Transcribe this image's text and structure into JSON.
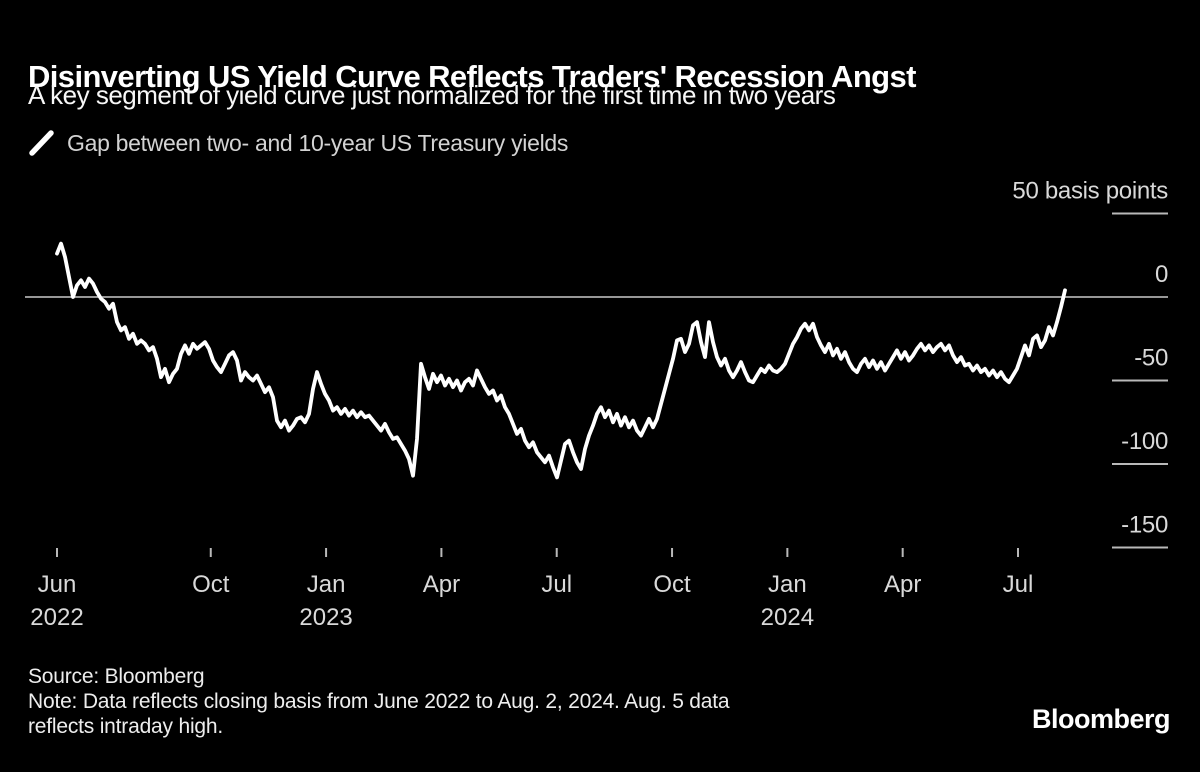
{
  "header": {
    "title": "Disinverting US Yield Curve Reflects Traders' Recession Angst",
    "subtitle": "A key segment of yield curve just normalized for the first time in two years"
  },
  "legend": {
    "marker": "line-swatch-icon",
    "label": "Gap between two- and 10-year US Treasury yields"
  },
  "footer": {
    "source": "Source: Bloomberg",
    "note_lines": [
      "Note: Data reflects closing basis from June 2022 to Aug. 2, 2024. Aug. 5 data",
      "reflects intraday high."
    ],
    "brand": "Bloomberg"
  },
  "colors": {
    "background": "#000000",
    "line": "#ffffff",
    "zero_line": "#c9c9c9",
    "tick": "#b9b9b9",
    "axis_text": "#d9d9d9"
  },
  "chart_data": {
    "type": "line",
    "title": "Disinverting US Yield Curve Reflects Traders' Recession Angst",
    "series_name": "Gap between two- and 10-year US Treasury yields",
    "unit": "basis points",
    "x_start": "2022-06-01",
    "x_end": "2024-08-05",
    "values_interval_days": 3.18,
    "ylim": [
      -157,
      79
    ],
    "grid": "off",
    "legend_position": "top-left",
    "y_ticks": [
      {
        "value": 50,
        "label": "50 basis points"
      },
      {
        "value": 0,
        "label": "0"
      },
      {
        "value": -50,
        "label": "-50"
      },
      {
        "value": -100,
        "label": "-100"
      },
      {
        "value": -150,
        "label": "-150"
      }
    ],
    "x_ticks": [
      {
        "month_offset": 0,
        "label": "Jun",
        "year": "2022"
      },
      {
        "month_offset": 4,
        "label": "Oct"
      },
      {
        "month_offset": 7,
        "label": "Jan",
        "year": "2023"
      },
      {
        "month_offset": 10,
        "label": "Apr"
      },
      {
        "month_offset": 13,
        "label": "Jul"
      },
      {
        "month_offset": 16,
        "label": "Oct"
      },
      {
        "month_offset": 19,
        "label": "Jan",
        "year": "2024"
      },
      {
        "month_offset": 22,
        "label": "Apr"
      },
      {
        "month_offset": 25,
        "label": "Jul"
      }
    ],
    "values": [
      26,
      32,
      24,
      12,
      0,
      7,
      10,
      6,
      11,
      8,
      3,
      -1,
      -3,
      -7,
      -4,
      -15,
      -20,
      -18,
      -25,
      -22,
      -28,
      -26,
      -28,
      -32,
      -30,
      -37,
      -48,
      -43,
      -51,
      -46,
      -43,
      -34,
      -29,
      -34,
      -28,
      -31,
      -29,
      -27,
      -31,
      -38,
      -42,
      -45,
      -40,
      -35,
      -33,
      -38,
      -50,
      -45,
      -48,
      -50,
      -47,
      -52,
      -57,
      -54,
      -60,
      -74,
      -78,
      -74,
      -80,
      -77,
      -73,
      -72,
      -75,
      -70,
      -55,
      -45,
      -52,
      -58,
      -62,
      -68,
      -66,
      -70,
      -67,
      -71,
      -68,
      -72,
      -69,
      -72,
      -71,
      -74,
      -77,
      -80,
      -76,
      -81,
      -85,
      -84,
      -88,
      -92,
      -97,
      -107,
      -85,
      -40,
      -48,
      -55,
      -46,
      -51,
      -47,
      -53,
      -49,
      -54,
      -50,
      -56,
      -51,
      -49,
      -53,
      -44,
      -49,
      -54,
      -58,
      -56,
      -62,
      -59,
      -66,
      -70,
      -76,
      -82,
      -79,
      -86,
      -90,
      -87,
      -93,
      -96,
      -99,
      -95,
      -102,
      -108,
      -98,
      -88,
      -86,
      -93,
      -99,
      -103,
      -91,
      -83,
      -77,
      -70,
      -66,
      -72,
      -68,
      -75,
      -70,
      -77,
      -72,
      -78,
      -74,
      -80,
      -83,
      -78,
      -73,
      -78,
      -73,
      -64,
      -55,
      -46,
      -37,
      -26,
      -25,
      -33,
      -28,
      -17,
      -15,
      -27,
      -36,
      -15,
      -27,
      -36,
      -41,
      -37,
      -44,
      -48,
      -44,
      -39,
      -45,
      -50,
      -51,
      -47,
      -43,
      -45,
      -41,
      -44,
      -45,
      -43,
      -40,
      -34,
      -28,
      -24,
      -19,
      -16,
      -20,
      -16,
      -24,
      -29,
      -33,
      -28,
      -35,
      -31,
      -37,
      -33,
      -39,
      -43,
      -45,
      -40,
      -37,
      -42,
      -38,
      -43,
      -39,
      -44,
      -40,
      -36,
      -32,
      -37,
      -33,
      -38,
      -35,
      -31,
      -28,
      -32,
      -29,
      -33,
      -30,
      -28,
      -32,
      -29,
      -35,
      -39,
      -36,
      -41,
      -40,
      -44,
      -41,
      -45,
      -43,
      -47,
      -44,
      -48,
      -45,
      -49,
      -51,
      -47,
      -43,
      -36,
      -29,
      -35,
      -25,
      -23,
      -30,
      -26,
      -18,
      -23,
      -15,
      -6,
      4
    ]
  }
}
